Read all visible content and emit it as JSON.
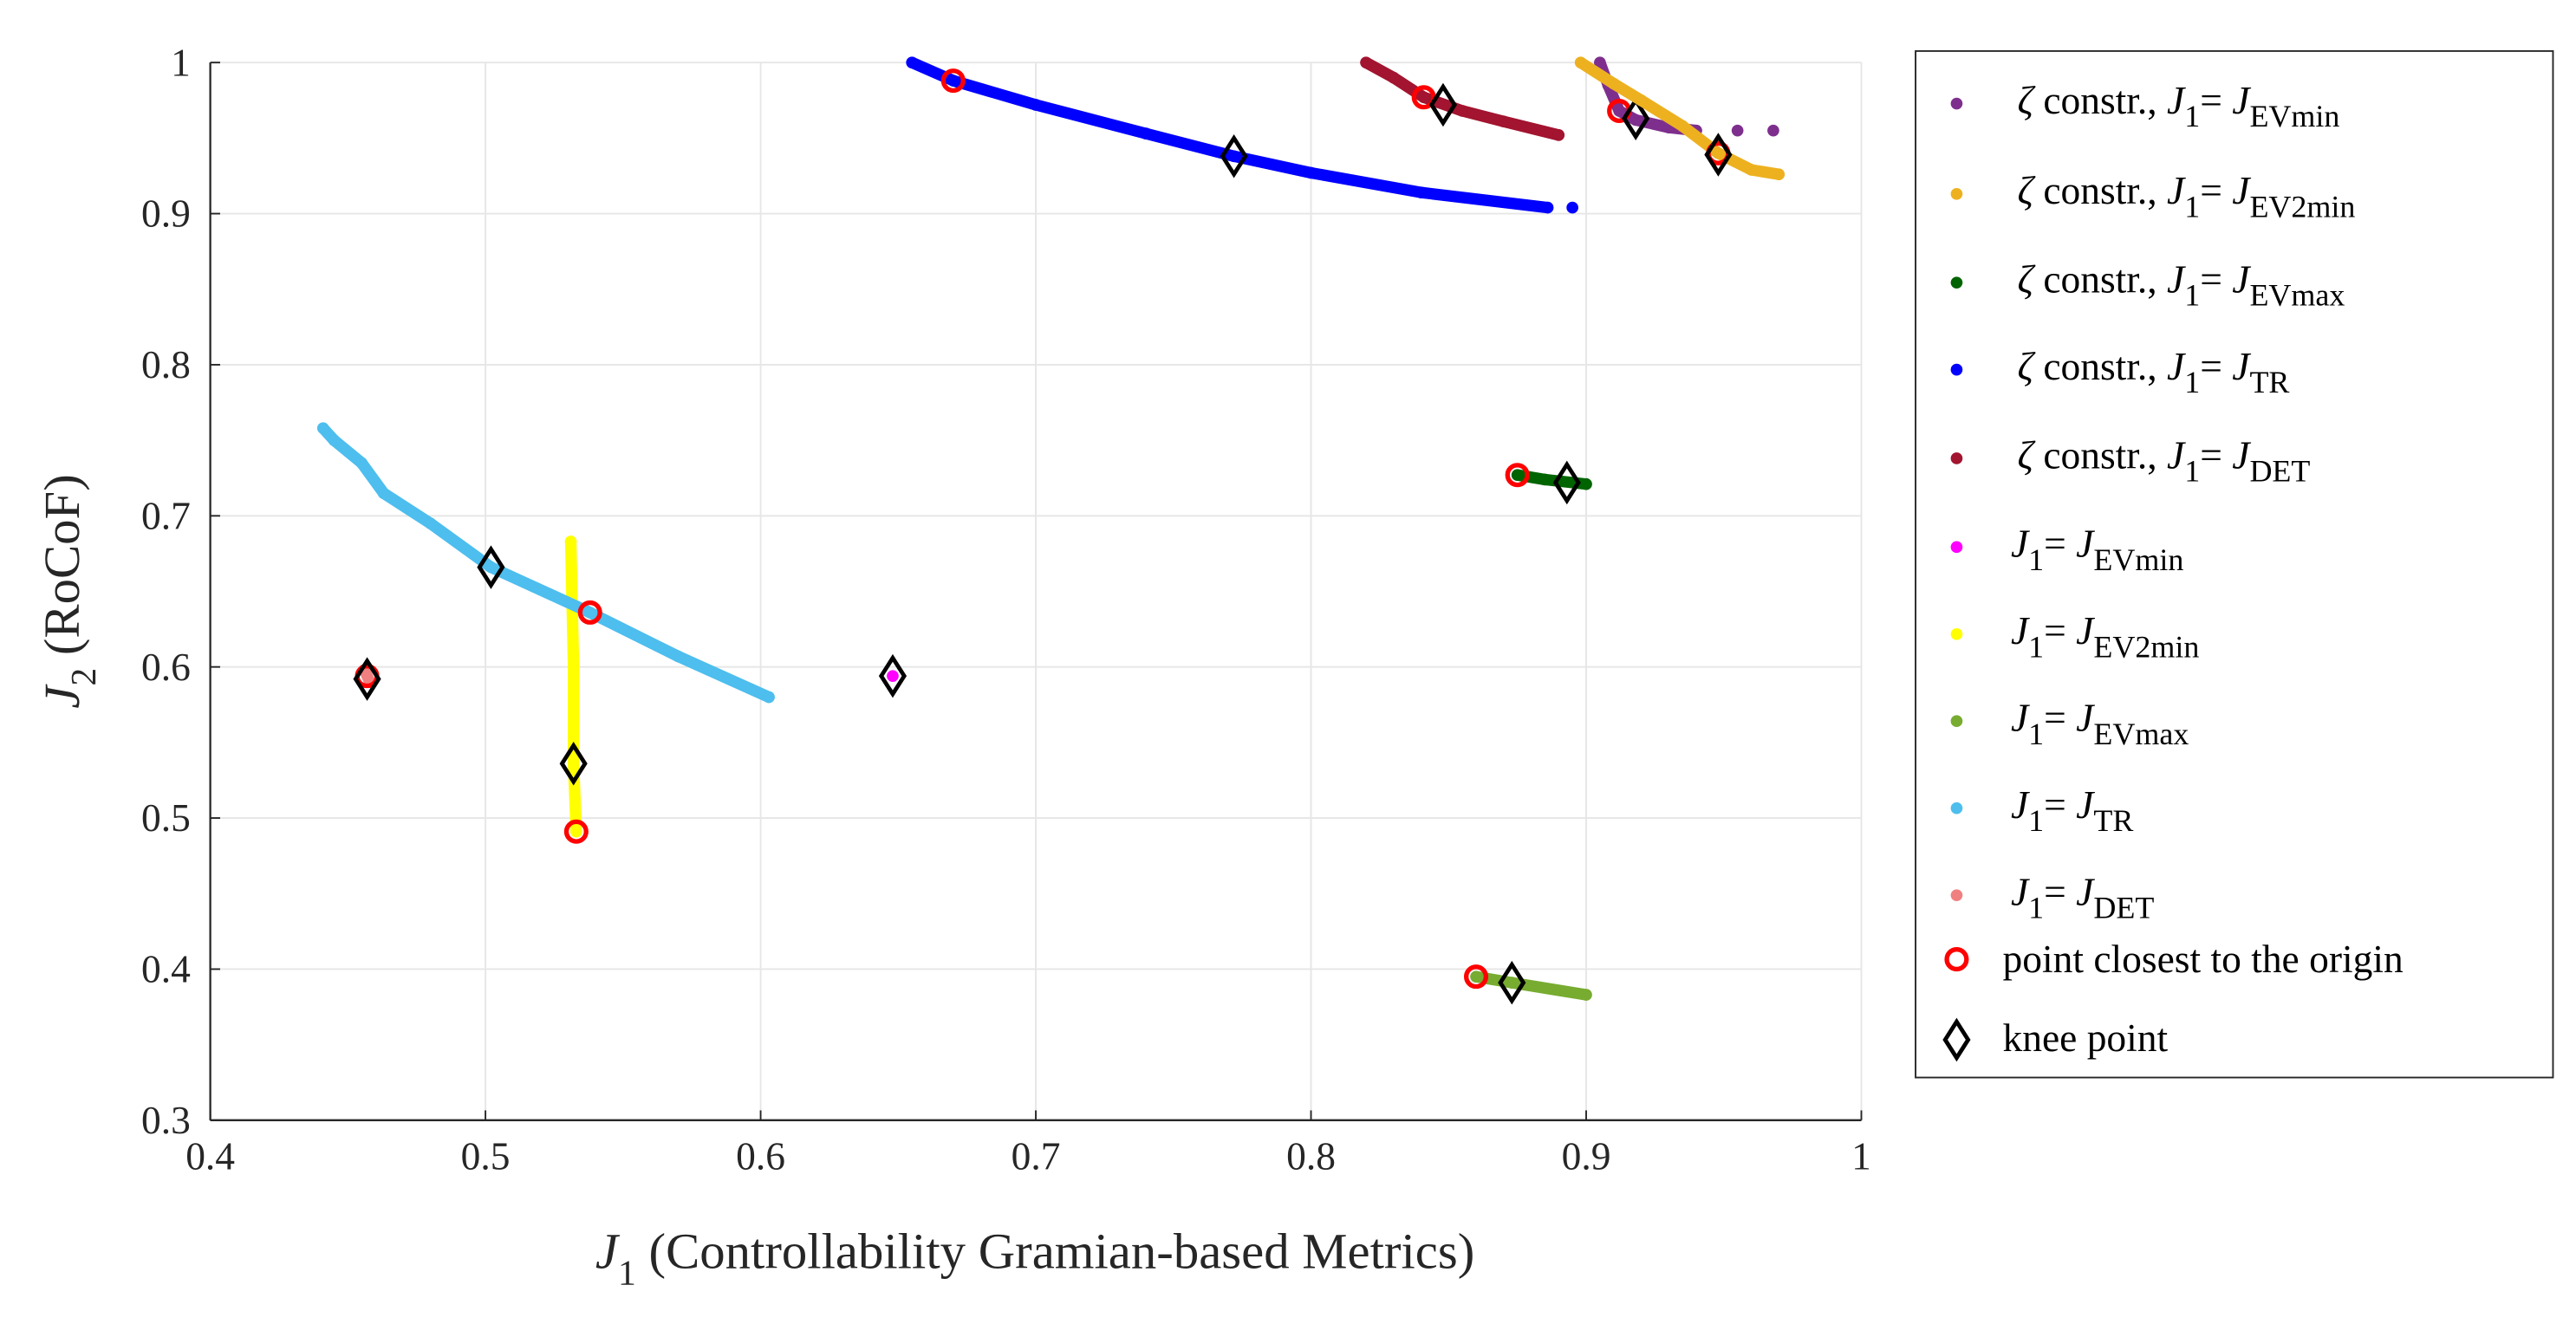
{
  "chart_data": {
    "type": "scatter",
    "xlabel": {
      "symbol": "J",
      "sub": "1",
      "text": " (Controllability Gramian-based Metrics)"
    },
    "ylabel": {
      "symbol": "J",
      "sub": "2",
      "text": " (RoCoF)"
    },
    "xlim": [
      0.4,
      1
    ],
    "ylim": [
      0.3,
      1
    ],
    "xticks": [
      "0.4",
      "0.5",
      "0.6",
      "0.7",
      "0.8",
      "0.9",
      "1"
    ],
    "yticks": [
      "0.3",
      "0.4",
      "0.5",
      "0.6",
      "0.7",
      "0.8",
      "0.9",
      "1"
    ],
    "grid": true,
    "legend_placement": "outside-right",
    "legend_prefix": "constr.,",
    "zeta_symbol": "ζ",
    "j1_symbol": "J",
    "j1_sub": "1",
    "equals": "=",
    "series": [
      {
        "zeta": true,
        "sub": "EVmin",
        "color": "#7E2F8E",
        "points": [
          [
            0.905,
            1.0
          ],
          [
            0.908,
            0.985
          ],
          [
            0.912,
            0.968
          ],
          [
            0.918,
            0.962
          ],
          [
            0.93,
            0.957
          ],
          [
            0.94,
            0.955
          ]
        ],
        "extra_points": [
          [
            0.955,
            0.955
          ],
          [
            0.968,
            0.955
          ]
        ],
        "closest": [
          0.912,
          0.968
        ],
        "knee": [
          0.918,
          0.963
        ]
      },
      {
        "zeta": true,
        "sub": "EV2min",
        "color": "#EDB120",
        "points": [
          [
            0.898,
            1.0
          ],
          [
            0.91,
            0.986
          ],
          [
            0.92,
            0.975
          ],
          [
            0.935,
            0.958
          ],
          [
            0.948,
            0.94
          ],
          [
            0.96,
            0.929
          ],
          [
            0.97,
            0.926
          ]
        ],
        "closest": [
          0.948,
          0.94
        ],
        "knee": [
          0.948,
          0.939
        ]
      },
      {
        "zeta": true,
        "sub": "EVmax",
        "color": "#006400",
        "points": [
          [
            0.875,
            0.727
          ],
          [
            0.885,
            0.724
          ],
          [
            0.9,
            0.721
          ]
        ],
        "closest": [
          0.875,
          0.727
        ],
        "knee": [
          0.893,
          0.722
        ]
      },
      {
        "zeta": true,
        "sub": "TR",
        "color": "#0000FF",
        "points": [
          [
            0.655,
            1.0
          ],
          [
            0.67,
            0.988
          ],
          [
            0.7,
            0.972
          ],
          [
            0.74,
            0.953
          ],
          [
            0.772,
            0.938
          ],
          [
            0.8,
            0.927
          ],
          [
            0.84,
            0.914
          ],
          [
            0.886,
            0.904
          ]
        ],
        "extra_points": [
          [
            0.895,
            0.904
          ]
        ],
        "closest": [
          0.67,
          0.988
        ],
        "knee": [
          0.772,
          0.938
        ]
      },
      {
        "zeta": true,
        "sub": "DET",
        "color": "#A2142F",
        "points": [
          [
            0.82,
            1.0
          ],
          [
            0.83,
            0.99
          ],
          [
            0.841,
            0.977
          ],
          [
            0.855,
            0.968
          ],
          [
            0.87,
            0.961
          ],
          [
            0.89,
            0.952
          ]
        ],
        "closest": [
          0.841,
          0.977
        ],
        "knee": [
          0.848,
          0.972
        ]
      },
      {
        "zeta": false,
        "sub": "EVmin",
        "color": "#FF00FF",
        "points": [
          [
            0.648,
            0.594
          ]
        ],
        "closest": null,
        "knee": [
          0.648,
          0.594
        ]
      },
      {
        "zeta": false,
        "sub": "EV2min",
        "color": "#FFFF00",
        "points": [
          [
            0.531,
            0.683
          ],
          [
            0.532,
            0.6
          ],
          [
            0.532,
            0.536
          ],
          [
            0.533,
            0.491
          ]
        ],
        "closest": [
          0.533,
          0.491
        ],
        "knee": [
          0.532,
          0.536
        ]
      },
      {
        "zeta": false,
        "sub": "EVmax",
        "color": "#77AC30",
        "points": [
          [
            0.86,
            0.395
          ],
          [
            0.873,
            0.391
          ],
          [
            0.9,
            0.383
          ]
        ],
        "closest": [
          0.86,
          0.395
        ],
        "knee": [
          0.873,
          0.391
        ]
      },
      {
        "zeta": false,
        "sub": "TR",
        "color": "#4DBEEE",
        "points": [
          [
            0.441,
            0.758
          ],
          [
            0.445,
            0.75
          ],
          [
            0.455,
            0.735
          ],
          [
            0.463,
            0.715
          ],
          [
            0.48,
            0.695
          ],
          [
            0.502,
            0.666
          ],
          [
            0.538,
            0.636
          ],
          [
            0.57,
            0.607
          ],
          [
            0.603,
            0.58
          ]
        ],
        "closest": [
          0.538,
          0.636
        ],
        "knee": [
          0.502,
          0.666
        ]
      },
      {
        "zeta": false,
        "sub": "DET",
        "color": "#F08080",
        "points": [
          [
            0.456,
            0.598
          ],
          [
            0.458,
            0.59
          ]
        ],
        "closest": [
          0.457,
          0.594
        ],
        "knee": [
          0.457,
          0.592
        ]
      }
    ],
    "closest_label": "point closest to the origin",
    "closest_color": "#FF0000",
    "knee_label": "knee point",
    "knee_color": "#000000"
  }
}
